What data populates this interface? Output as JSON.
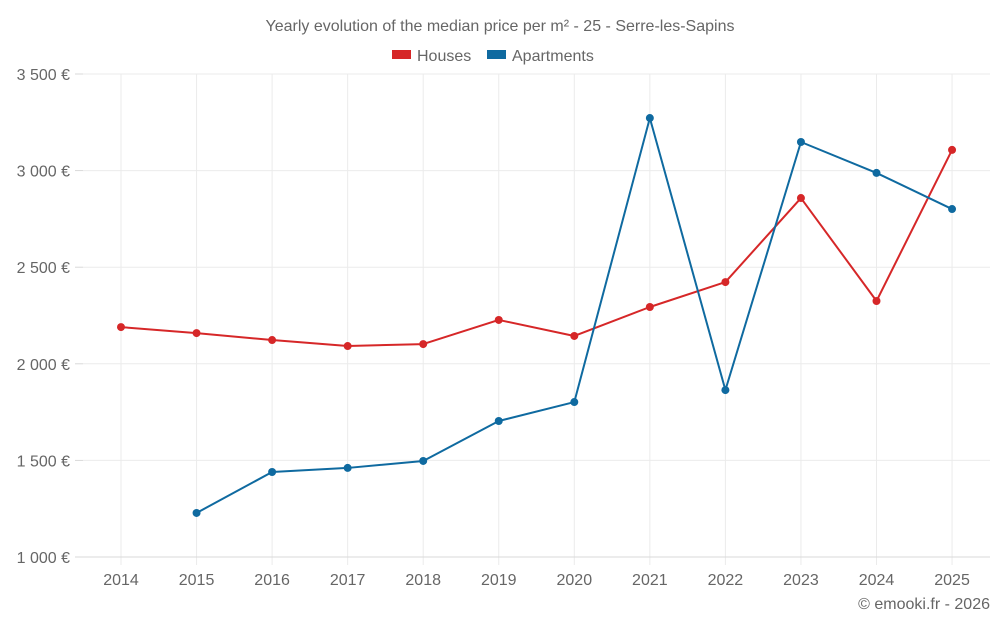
{
  "chart_data": {
    "type": "line",
    "title": "Yearly evolution of the median price per m² - 25 - Serre-les-Sapins",
    "xlabel": "",
    "ylabel": "",
    "x": [
      "2014",
      "2015",
      "2016",
      "2017",
      "2018",
      "2019",
      "2020",
      "2021",
      "2022",
      "2023",
      "2024",
      "2025"
    ],
    "ylim": [
      1000,
      3500
    ],
    "yticks": [
      1000,
      1500,
      2000,
      2500,
      3000,
      3500
    ],
    "ytick_labels": [
      "1 000 €",
      "1 500 €",
      "2 000 €",
      "2 500 €",
      "3 000 €",
      "3 500 €"
    ],
    "grid": true,
    "legend_position": "top-center",
    "series": [
      {
        "name": "Houses",
        "color": "#d62728",
        "values": [
          2190,
          2159,
          2123,
          2092,
          2102,
          2227,
          2144,
          2294,
          2423,
          2858,
          2325,
          3107
        ]
      },
      {
        "name": "Apartments",
        "color": "#0f6aa0",
        "values": [
          null,
          1228,
          1440,
          1461,
          1497,
          1704,
          1802,
          3272,
          1864,
          3148,
          2988,
          2801
        ]
      }
    ],
    "credit": "© emooki.fr - 2026"
  }
}
